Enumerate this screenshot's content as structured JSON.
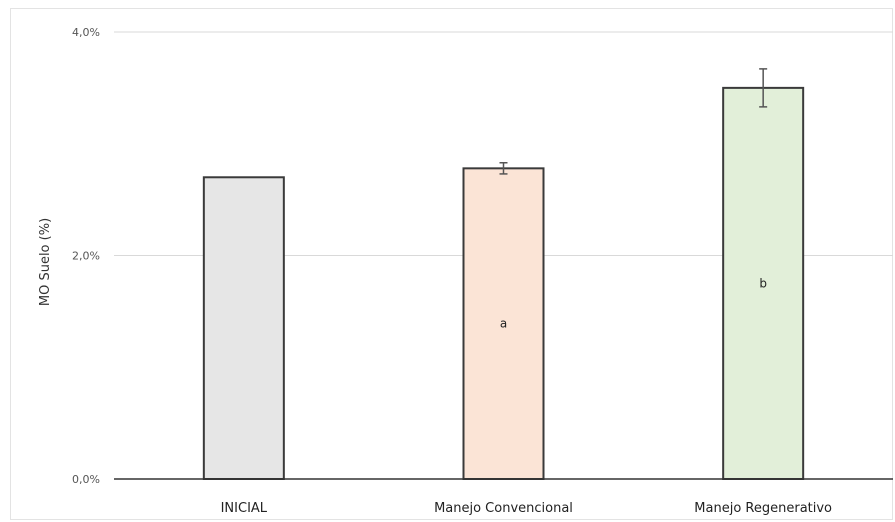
{
  "chart_data": {
    "type": "bar",
    "title": "",
    "xlabel": "",
    "ylabel": "MO Suelo (%)",
    "ylim": [
      0,
      4
    ],
    "yticks": [
      0,
      2,
      4
    ],
    "ytick_labels": [
      "0,0%",
      "2,0%",
      "4,0%"
    ],
    "grid": true,
    "categories": [
      "INICIAL",
      "Manejo Convencional",
      "Manejo Regenerativo"
    ],
    "values": [
      2.7,
      2.78,
      3.5
    ],
    "errors": [
      0,
      0.05,
      0.17
    ],
    "bar_labels": [
      "",
      "a",
      "b"
    ],
    "colors": [
      "#e6e6e6",
      "#fbe4d6",
      "#e2efd9"
    ]
  }
}
